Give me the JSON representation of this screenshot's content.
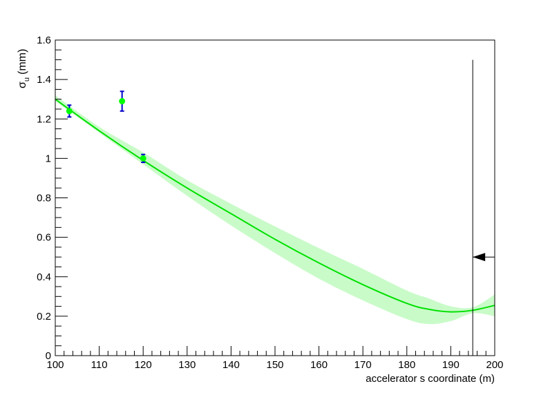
{
  "chart_data": {
    "type": "scatter",
    "xlabel": "accelerator s coordinate (m)",
    "ylabel": "σ",
    "ylabel_sub": "u",
    "ylabel_unit": "(mm)",
    "xlim": [
      100,
      200
    ],
    "ylim": [
      0,
      1.6
    ],
    "xticks": [
      "100",
      "110",
      "120",
      "130",
      "140",
      "150",
      "160",
      "170",
      "180",
      "190",
      "200"
    ],
    "yticks": [
      "0",
      "0.2",
      "0.4",
      "0.6",
      "0.8",
      "1",
      "1.2",
      "1.4",
      "1.6"
    ],
    "grid": false,
    "points": [
      {
        "x": 103.2,
        "y": 1.24,
        "err": 0.03
      },
      {
        "x": 115.2,
        "y": 1.29,
        "err": 0.05
      },
      {
        "x": 120.0,
        "y": 1.0,
        "err": 0.02
      }
    ],
    "fit_curve": {
      "x": [
        100,
        110,
        120,
        130,
        140,
        150,
        160,
        170,
        180,
        185,
        190,
        195,
        200
      ],
      "y": [
        1.3,
        1.14,
        0.99,
        0.85,
        0.72,
        0.59,
        0.47,
        0.36,
        0.265,
        0.235,
        0.222,
        0.23,
        0.255
      ]
    },
    "band": {
      "x": [
        100,
        110,
        120,
        130,
        140,
        150,
        160,
        170,
        180,
        185,
        190,
        195,
        200
      ],
      "lower": [
        1.29,
        1.13,
        0.97,
        0.81,
        0.66,
        0.52,
        0.39,
        0.28,
        0.185,
        0.16,
        0.175,
        0.215,
        0.2
      ],
      "upper": [
        1.32,
        1.16,
        1.03,
        0.89,
        0.77,
        0.655,
        0.545,
        0.44,
        0.33,
        0.29,
        0.25,
        0.245,
        0.31
      ]
    },
    "marker_line_x": 195,
    "marker_line_top": 1.5,
    "marker_arrow_y": 0.5,
    "colors": {
      "points": "#00ff00",
      "errorbars": "#0000cc",
      "curve": "#00e000",
      "band": "#c9fbc9",
      "marker": "#000000"
    }
  }
}
